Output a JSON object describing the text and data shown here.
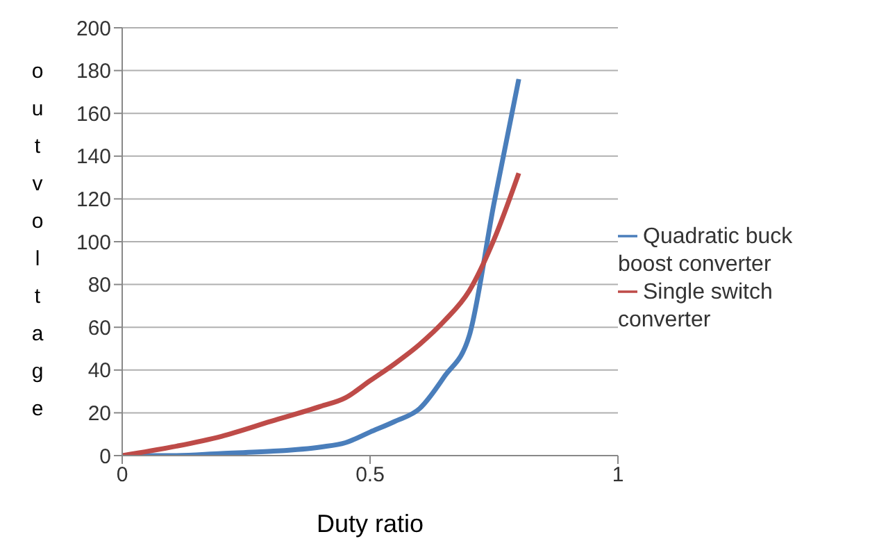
{
  "chart_data": {
    "type": "line",
    "xlabel": "Duty ratio",
    "ylabel": "out voltage",
    "x": [
      0,
      0.1,
      0.2,
      0.3,
      0.4,
      0.45,
      0.5,
      0.55,
      0.6,
      0.65,
      0.7,
      0.75,
      0.8
    ],
    "series": [
      {
        "name": "Quadratic buck boost converter",
        "color": "#4a7ebb",
        "values": [
          0,
          0,
          1,
          2,
          4,
          6,
          11,
          16,
          22,
          37,
          56,
          118,
          176
        ]
      },
      {
        "name": "Single switch converter",
        "color": "#be4b48",
        "values": [
          0,
          4,
          9,
          16,
          23,
          27,
          35,
          43,
          52,
          63,
          77,
          101,
          132
        ]
      }
    ],
    "xlim": [
      0,
      1
    ],
    "xticks": [
      0,
      0.5,
      1
    ],
    "ylim": [
      0,
      200
    ],
    "yticks": [
      0,
      20,
      40,
      60,
      80,
      100,
      120,
      140,
      160,
      180,
      200
    ],
    "grid": "y",
    "legend": "right",
    "marker": "none",
    "line_style": "solid"
  }
}
